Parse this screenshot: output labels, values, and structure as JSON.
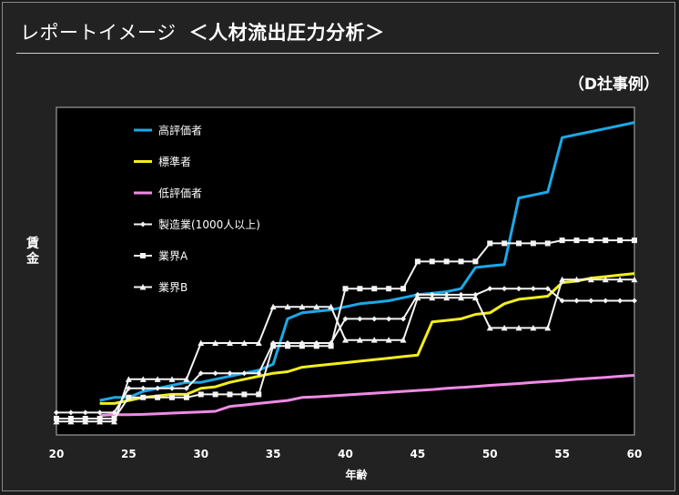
{
  "header": {
    "title": "レポートイメージ",
    "subtitle": "＜人材流出圧力分析＞",
    "caption": "（D社事例）"
  },
  "chart_data": {
    "type": "line",
    "xlabel": "年齢",
    "ylabel": "賃金",
    "xlim": [
      20,
      60
    ],
    "ylim": [
      0,
      100
    ],
    "xticks": [
      "20",
      "25",
      "30",
      "35",
      "40",
      "45",
      "50",
      "55",
      "60"
    ],
    "grid": false,
    "legend_position": "top-left",
    "series": [
      {
        "name": "高評価者",
        "color": "#1ba9e6",
        "marker": "none",
        "points": [
          [
            23,
            6
          ],
          [
            24,
            7
          ],
          [
            25,
            7
          ],
          [
            26,
            9
          ],
          [
            27,
            10
          ],
          [
            28,
            11
          ],
          [
            29,
            12
          ],
          [
            30,
            12
          ],
          [
            31,
            13
          ],
          [
            32,
            14
          ],
          [
            33,
            15
          ],
          [
            34,
            16
          ],
          [
            35,
            18
          ],
          [
            36,
            33
          ],
          [
            37,
            35
          ],
          [
            38,
            35.5
          ],
          [
            39,
            36
          ],
          [
            40,
            37
          ],
          [
            41,
            38
          ],
          [
            42,
            38.5
          ],
          [
            43,
            39
          ],
          [
            44,
            40
          ],
          [
            45,
            41
          ],
          [
            46,
            41.5
          ],
          [
            47,
            42
          ],
          [
            48,
            43
          ],
          [
            49,
            50
          ],
          [
            50,
            50.5
          ],
          [
            51,
            51
          ],
          [
            52,
            73
          ],
          [
            53,
            74
          ],
          [
            54,
            75
          ],
          [
            55,
            93
          ],
          [
            56,
            94
          ],
          [
            57,
            95
          ],
          [
            58,
            96
          ],
          [
            59,
            97
          ],
          [
            60,
            98
          ]
        ]
      },
      {
        "name": "標準者",
        "color": "#f2ee1c",
        "marker": "none",
        "points": [
          [
            23,
            5
          ],
          [
            24,
            5
          ],
          [
            25,
            6
          ],
          [
            26,
            7
          ],
          [
            27,
            7.5
          ],
          [
            28,
            8
          ],
          [
            29,
            8
          ],
          [
            30,
            10
          ],
          [
            31,
            10.5
          ],
          [
            32,
            12
          ],
          [
            33,
            13
          ],
          [
            34,
            14
          ],
          [
            35,
            15
          ],
          [
            36,
            15.5
          ],
          [
            37,
            17
          ],
          [
            38,
            17.5
          ],
          [
            39,
            18
          ],
          [
            40,
            18.5
          ],
          [
            41,
            19
          ],
          [
            42,
            19.5
          ],
          [
            43,
            20
          ],
          [
            44,
            20.5
          ],
          [
            45,
            21
          ],
          [
            46,
            32
          ],
          [
            47,
            32.5
          ],
          [
            48,
            33
          ],
          [
            49,
            34.5
          ],
          [
            50,
            35
          ],
          [
            51,
            38
          ],
          [
            52,
            39.5
          ],
          [
            53,
            40
          ],
          [
            54,
            40.5
          ],
          [
            55,
            45
          ],
          [
            56,
            45.5
          ],
          [
            57,
            46.5
          ],
          [
            58,
            47
          ],
          [
            59,
            47.5
          ],
          [
            60,
            48
          ]
        ]
      },
      {
        "name": "低評価者",
        "color": "#f08ae6",
        "marker": "none",
        "points": [
          [
            23,
            1
          ],
          [
            24,
            1.3
          ],
          [
            25,
            1.3
          ],
          [
            26,
            1.4
          ],
          [
            27,
            1.6
          ],
          [
            28,
            1.8
          ],
          [
            29,
            2
          ],
          [
            30,
            2.2
          ],
          [
            31,
            2.4
          ],
          [
            32,
            4
          ],
          [
            33,
            4.5
          ],
          [
            34,
            5
          ],
          [
            35,
            5.5
          ],
          [
            36,
            6
          ],
          [
            37,
            7
          ],
          [
            38,
            7.2
          ],
          [
            39,
            7.5
          ],
          [
            40,
            7.8
          ],
          [
            41,
            8.1
          ],
          [
            42,
            8.4
          ],
          [
            43,
            8.7
          ],
          [
            44,
            9
          ],
          [
            45,
            9.3
          ],
          [
            46,
            9.6
          ],
          [
            47,
            10
          ],
          [
            48,
            10.3
          ],
          [
            49,
            10.6
          ],
          [
            50,
            11
          ],
          [
            51,
            11.3
          ],
          [
            52,
            11.6
          ],
          [
            53,
            12
          ],
          [
            54,
            12.3
          ],
          [
            55,
            12.6
          ],
          [
            56,
            13
          ],
          [
            57,
            13.3
          ],
          [
            58,
            13.6
          ],
          [
            59,
            14
          ],
          [
            60,
            14.3
          ]
        ]
      },
      {
        "name": "製造業(1000人以上)",
        "color": "#f4f4f4",
        "marker": "diamond",
        "points": [
          [
            20,
            2
          ],
          [
            21,
            2
          ],
          [
            22,
            2
          ],
          [
            23,
            2
          ],
          [
            24,
            2
          ],
          [
            25,
            10
          ],
          [
            26,
            10
          ],
          [
            27,
            10
          ],
          [
            28,
            10
          ],
          [
            29,
            10
          ],
          [
            30,
            15
          ],
          [
            31,
            15
          ],
          [
            32,
            15
          ],
          [
            33,
            15
          ],
          [
            34,
            15
          ],
          [
            35,
            25
          ],
          [
            36,
            25
          ],
          [
            37,
            25
          ],
          [
            38,
            25
          ],
          [
            39,
            25
          ],
          [
            40,
            33
          ],
          [
            41,
            33
          ],
          [
            42,
            33
          ],
          [
            43,
            33
          ],
          [
            44,
            33
          ],
          [
            45,
            41
          ],
          [
            46,
            41
          ],
          [
            47,
            41
          ],
          [
            48,
            41
          ],
          [
            49,
            41
          ],
          [
            50,
            43
          ],
          [
            51,
            43
          ],
          [
            52,
            43
          ],
          [
            53,
            43
          ],
          [
            54,
            43
          ],
          [
            55,
            39
          ],
          [
            56,
            39
          ],
          [
            57,
            39
          ],
          [
            58,
            39
          ],
          [
            59,
            39
          ],
          [
            60,
            39
          ]
        ]
      },
      {
        "name": "業界A",
        "color": "#f4f4f4",
        "marker": "square",
        "points": [
          [
            20,
            0
          ],
          [
            21,
            0
          ],
          [
            22,
            0
          ],
          [
            23,
            0
          ],
          [
            24,
            0
          ],
          [
            25,
            7
          ],
          [
            26,
            7
          ],
          [
            27,
            7
          ],
          [
            28,
            7
          ],
          [
            29,
            7
          ],
          [
            30,
            8
          ],
          [
            31,
            8
          ],
          [
            32,
            8
          ],
          [
            33,
            8
          ],
          [
            34,
            8
          ],
          [
            35,
            24
          ],
          [
            36,
            24
          ],
          [
            37,
            24
          ],
          [
            38,
            24
          ],
          [
            39,
            24
          ],
          [
            40,
            43
          ],
          [
            41,
            43
          ],
          [
            42,
            43
          ],
          [
            43,
            43
          ],
          [
            44,
            43
          ],
          [
            45,
            52
          ],
          [
            46,
            52
          ],
          [
            47,
            52
          ],
          [
            48,
            52
          ],
          [
            49,
            52
          ],
          [
            50,
            58
          ],
          [
            51,
            58
          ],
          [
            52,
            58
          ],
          [
            53,
            58
          ],
          [
            54,
            58
          ],
          [
            55,
            59
          ],
          [
            56,
            59
          ],
          [
            57,
            59
          ],
          [
            58,
            59
          ],
          [
            59,
            59
          ],
          [
            60,
            59
          ]
        ]
      },
      {
        "name": "業界B",
        "color": "#f4f4f4",
        "marker": "triangle",
        "points": [
          [
            20,
            -1
          ],
          [
            21,
            -1
          ],
          [
            22,
            -1
          ],
          [
            23,
            -1
          ],
          [
            24,
            -1
          ],
          [
            25,
            13
          ],
          [
            26,
            13
          ],
          [
            27,
            13
          ],
          [
            28,
            13
          ],
          [
            29,
            13
          ],
          [
            30,
            25
          ],
          [
            31,
            25
          ],
          [
            32,
            25
          ],
          [
            33,
            25
          ],
          [
            34,
            25
          ],
          [
            35,
            37
          ],
          [
            36,
            37
          ],
          [
            37,
            37
          ],
          [
            38,
            37
          ],
          [
            39,
            37
          ],
          [
            40,
            26
          ],
          [
            41,
            26
          ],
          [
            42,
            26
          ],
          [
            43,
            26
          ],
          [
            44,
            26
          ],
          [
            45,
            40
          ],
          [
            46,
            40
          ],
          [
            47,
            40
          ],
          [
            48,
            40
          ],
          [
            49,
            40
          ],
          [
            50,
            30
          ],
          [
            51,
            30
          ],
          [
            52,
            30
          ],
          [
            53,
            30
          ],
          [
            54,
            30
          ],
          [
            55,
            46
          ],
          [
            56,
            46
          ],
          [
            57,
            46
          ],
          [
            58,
            46
          ],
          [
            59,
            46
          ],
          [
            60,
            46
          ]
        ]
      }
    ]
  }
}
